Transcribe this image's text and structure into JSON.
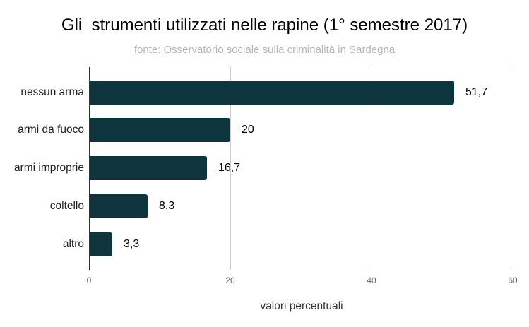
{
  "chart_data": {
    "type": "bar",
    "orientation": "horizontal",
    "title": "Gli  strumenti utilizzati nelle rapine (1° semestre 2017)",
    "subtitle": "fonte: Osservatorio sociale sulla criminalità in Sardegna",
    "xlabel": "valori percentuali",
    "ylabel": "",
    "categories": [
      "nessun arma",
      "armi da fuoco",
      "armi improprie",
      "coltello",
      "altro"
    ],
    "values": [
      51.7,
      20,
      16.7,
      8.3,
      3.3
    ],
    "value_labels": [
      "51,7",
      "20",
      "16,7",
      "8,3",
      "3,3"
    ],
    "xlim": [
      0,
      60
    ],
    "xticks": [
      "0",
      "20",
      "40",
      "60"
    ],
    "grid": true,
    "legend": null,
    "bar_color": "#0e353d"
  }
}
